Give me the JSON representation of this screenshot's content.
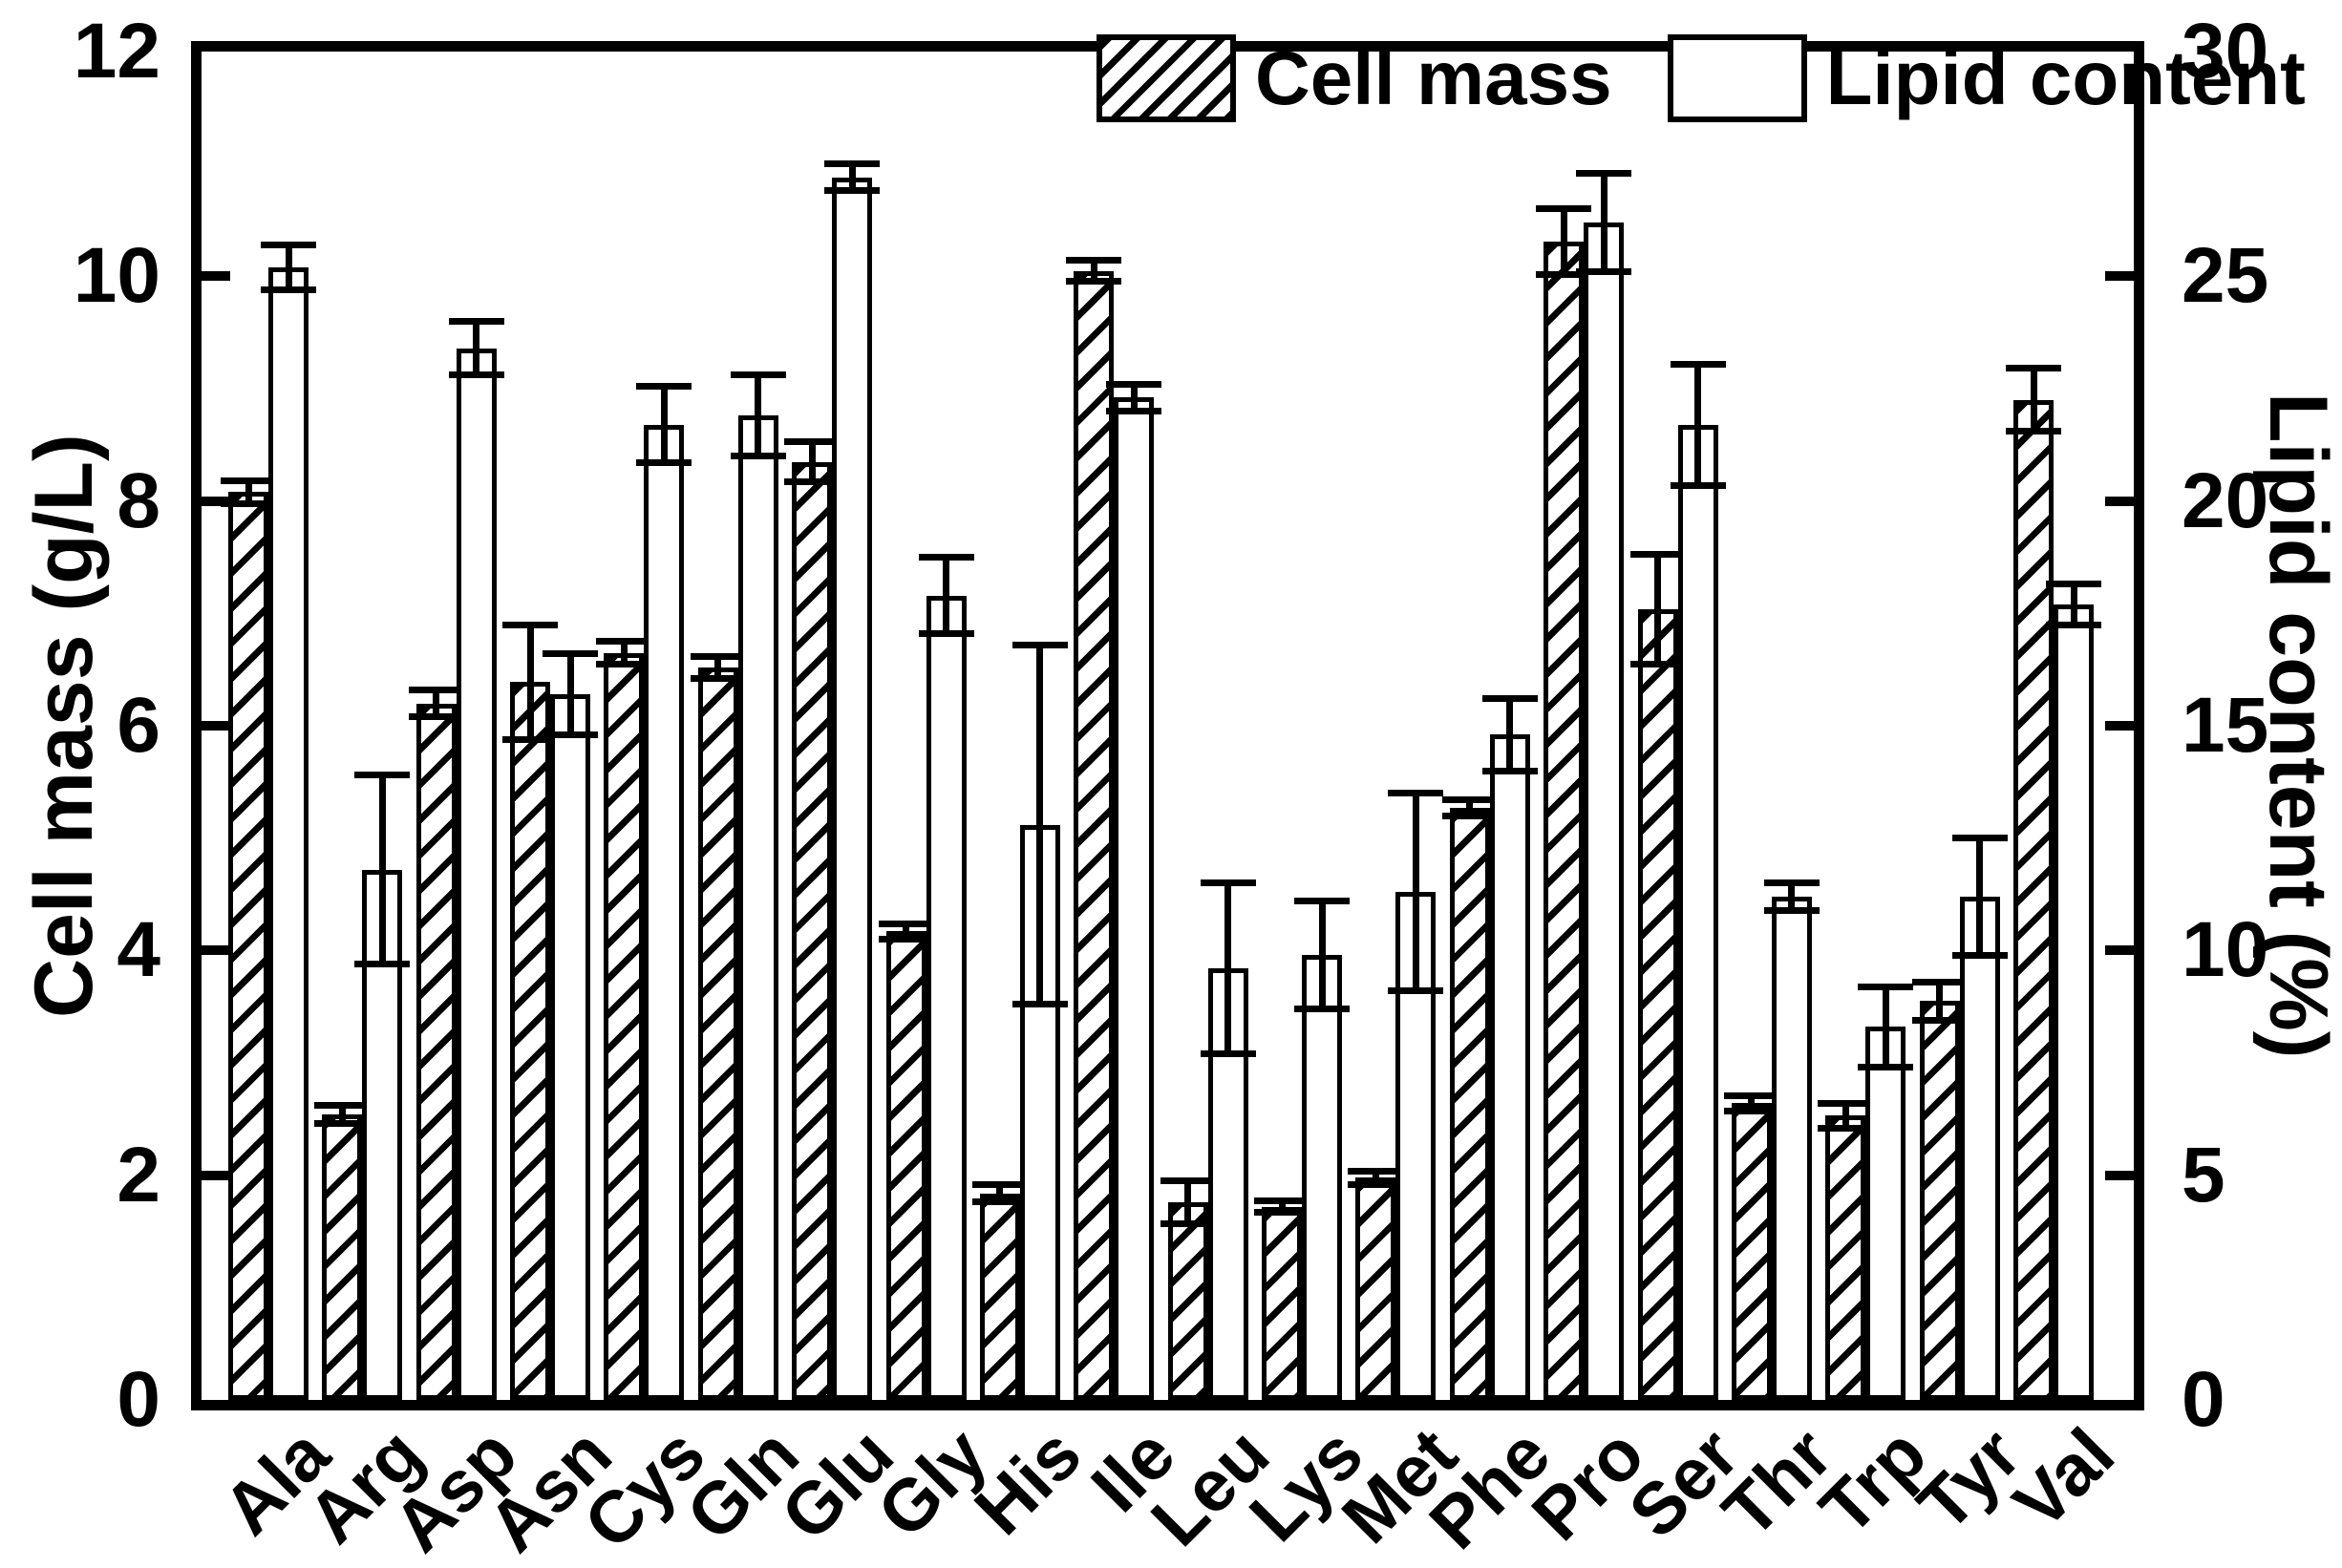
{
  "figure": {
    "background_color": "#ffffff",
    "foreground_color": "#000000"
  },
  "legend": {
    "items": [
      {
        "label": "Cell mass",
        "swatch": "hatched"
      },
      {
        "label": "Lipid content",
        "swatch": "white"
      }
    ]
  },
  "chart_data": {
    "type": "bar",
    "title": "",
    "categories": [
      "Ala",
      "Arg",
      "Asp",
      "Asn",
      "Cys",
      "Gln",
      "Glu",
      "Gly",
      "His",
      "Ile",
      "Leu",
      "Lys",
      "Met",
      "Phe",
      "Pro",
      "Ser",
      "Thr",
      "Trp",
      "Tyr",
      "Val"
    ],
    "series": [
      {
        "name": "Cell mass",
        "axis": "left",
        "style": "hatched",
        "unit": "g/L",
        "values": [
          8.08,
          2.54,
          6.2,
          6.39,
          6.65,
          6.52,
          8.35,
          4.17,
          1.84,
          10.05,
          1.76,
          1.72,
          1.98,
          5.27,
          10.31,
          7.04,
          2.64,
          2.53,
          3.55,
          8.9
        ],
        "errors": [
          0.1,
          0.08,
          0.12,
          0.51,
          0.1,
          0.1,
          0.18,
          0.07,
          0.08,
          0.09,
          0.19,
          0.05,
          0.06,
          0.07,
          0.29,
          0.49,
          0.07,
          0.11,
          0.17,
          0.28
        ]
      },
      {
        "name": "Lipid content",
        "axis": "right",
        "style": "white",
        "unit": "%",
        "values": [
          25.2,
          11.8,
          23.4,
          15.7,
          21.7,
          21.9,
          27.2,
          17.9,
          12.8,
          22.3,
          9.6,
          9.9,
          11.3,
          14.8,
          26.2,
          21.7,
          11.2,
          8.3,
          11.2,
          17.7
        ],
        "errors": [
          0.5,
          2.1,
          0.6,
          0.9,
          0.85,
          0.9,
          0.3,
          0.85,
          4.0,
          0.3,
          1.9,
          1.2,
          2.2,
          0.8,
          1.1,
          1.35,
          0.3,
          0.9,
          1.3,
          0.45
        ]
      }
    ],
    "left_axis": {
      "label": "Cell mass (g/L)",
      "min": 0,
      "max": 12,
      "ticks": [
        0,
        2,
        4,
        6,
        8,
        10,
        12
      ]
    },
    "right_axis": {
      "label": "Lipid content (%)",
      "min": 0,
      "max": 30,
      "ticks": [
        0,
        5,
        10,
        15,
        20,
        25,
        30
      ]
    },
    "grid": false,
    "legend_position": "top-inside",
    "error_bars": true
  }
}
